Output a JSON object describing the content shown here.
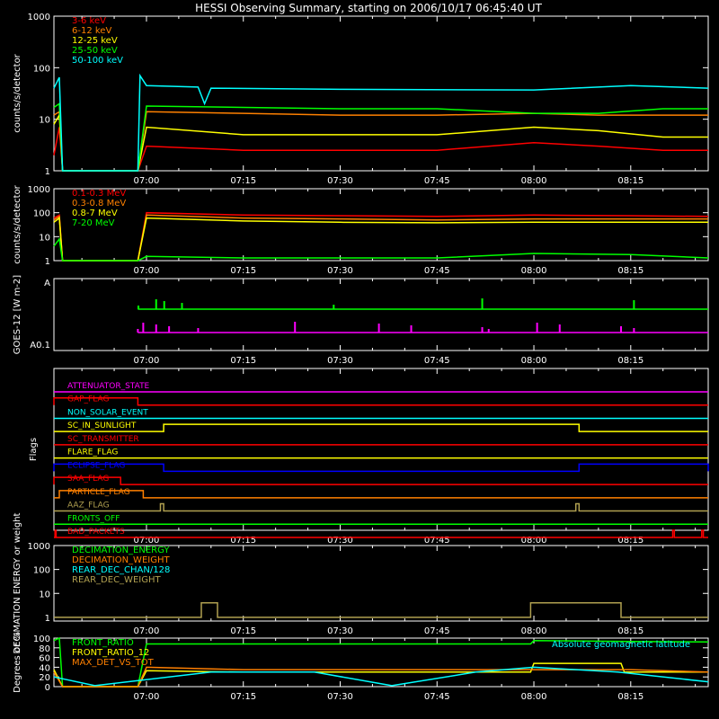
{
  "title": "HESSI Observing Summary, starting on 2006/10/17 06:45:40 UT",
  "colors": {
    "background": "#000000",
    "axis": "#ffffff",
    "red": "#ff0000",
    "orange": "#ff8000",
    "yellow": "#ffff00",
    "green": "#00ff00",
    "cyan": "#00ffff",
    "magenta": "#ff00ff",
    "blue": "#0000ff",
    "olive": "#b0a050"
  },
  "time_ticks": [
    "07:00",
    "07:15",
    "07:30",
    "07:45",
    "08:00",
    "08:15"
  ],
  "chart_data": [
    {
      "type": "line",
      "ylabel": "counts/s/detector",
      "yscale": "log",
      "ylim": [
        1,
        1000
      ],
      "yticks": [
        "1",
        "10",
        "100",
        "1000"
      ],
      "xlim": [
        "06:45:40",
        "08:27:00"
      ],
      "series": [
        {
          "name": "3-6 keV",
          "color": "red",
          "x": [
            "06:45:40",
            "06:46:30",
            "06:47:00",
            "06:58:40",
            "07:00",
            "07:15",
            "07:30",
            "07:45",
            "08:00",
            "08:10",
            "08:20",
            "08:27"
          ],
          "values": [
            2,
            7,
            1,
            1,
            3,
            2.5,
            2.5,
            2.5,
            3.5,
            3,
            2.5,
            2.5
          ]
        },
        {
          "name": "6-12 keV",
          "color": "orange",
          "x": [
            "06:45:40",
            "06:46:30",
            "06:47:00",
            "06:58:40",
            "07:00",
            "07:15",
            "07:30",
            "07:45",
            "08:00",
            "08:10",
            "08:20",
            "08:27"
          ],
          "values": [
            12,
            14,
            1,
            1,
            14,
            13,
            12,
            12,
            13,
            12,
            12,
            12
          ]
        },
        {
          "name": "12-25 keV",
          "color": "yellow",
          "x": [
            "06:45:40",
            "06:46:30",
            "06:47:00",
            "06:58:40",
            "07:00",
            "07:15",
            "07:30",
            "07:45",
            "08:00",
            "08:10",
            "08:20",
            "08:27"
          ],
          "values": [
            8,
            12,
            1,
            1,
            7,
            5,
            5,
            5,
            7,
            6,
            4.5,
            4.5
          ]
        },
        {
          "name": "25-50 keV",
          "color": "green",
          "x": [
            "06:45:40",
            "06:46:30",
            "06:47:00",
            "06:58:40",
            "07:00",
            "07:15",
            "07:30",
            "07:45",
            "08:00",
            "08:10",
            "08:20",
            "08:27"
          ],
          "values": [
            17,
            20,
            1,
            1,
            18,
            17,
            16,
            16,
            13,
            13,
            16,
            16
          ]
        },
        {
          "name": "50-100 keV",
          "color": "cyan",
          "x": [
            "06:45:40",
            "06:46:30",
            "06:47:00",
            "06:58:40",
            "06:59",
            "07:00",
            "07:08",
            "07:09",
            "07:10",
            "07:30",
            "08:00",
            "08:15",
            "08:27"
          ],
          "values": [
            40,
            65,
            1,
            1,
            70,
            45,
            42,
            20,
            40,
            38,
            37,
            45,
            40
          ]
        }
      ]
    },
    {
      "type": "line",
      "ylabel": "counts/s/detector",
      "yscale": "log",
      "ylim": [
        1,
        1000
      ],
      "yticks": [
        "1",
        "10",
        "100",
        "1000"
      ],
      "series": [
        {
          "name": "0.1-0.3 MeV",
          "color": "red",
          "x": [
            "06:45:40",
            "06:46:30",
            "06:47:00",
            "06:58:40",
            "07:00",
            "07:15",
            "07:30",
            "07:45",
            "08:00",
            "08:15",
            "08:27"
          ],
          "values": [
            60,
            80,
            1,
            1,
            100,
            80,
            75,
            70,
            80,
            75,
            70
          ]
        },
        {
          "name": "0.3-0.8 MeV",
          "color": "orange",
          "x": [
            "06:45:40",
            "06:46:30",
            "06:47:00",
            "06:58:40",
            "07:00",
            "07:15",
            "07:30",
            "07:45",
            "08:00",
            "08:15",
            "08:27"
          ],
          "values": [
            50,
            70,
            1,
            1,
            80,
            60,
            55,
            50,
            55,
            55,
            55
          ]
        },
        {
          "name": "0.8-7 MeV",
          "color": "yellow",
          "x": [
            "06:45:40",
            "06:46:30",
            "06:47:00",
            "06:58:40",
            "07:00",
            "07:15",
            "07:30",
            "07:45",
            "08:00",
            "08:15",
            "08:27"
          ],
          "values": [
            40,
            60,
            1,
            1,
            60,
            45,
            40,
            38,
            40,
            40,
            40
          ]
        },
        {
          "name": "7-20 MeV",
          "color": "green",
          "x": [
            "06:45:40",
            "06:46:30",
            "06:47:00",
            "06:58:40",
            "07:00",
            "07:15",
            "07:30",
            "07:45",
            "08:00",
            "08:15",
            "08:27"
          ],
          "values": [
            4,
            8,
            1,
            1,
            1.5,
            1.3,
            1.3,
            1.3,
            2,
            1.8,
            1.3
          ]
        }
      ]
    },
    {
      "type": "line",
      "ylabel": "GOES-12 [W m-2]",
      "yticks": [
        "A0.1",
        "A"
      ],
      "series": [
        {
          "color": "green",
          "spikes_at": [
            "06:58:45",
            "07:01:30",
            "07:02:45",
            "07:05:30",
            "07:29:00",
            "07:52:00",
            "08:15:30"
          ]
        },
        {
          "color": "magenta",
          "spikes_at": [
            "06:58:40",
            "06:59:30",
            "07:01:30",
            "07:03:30",
            "07:08:00",
            "07:23:00",
            "07:36:00",
            "07:41:00",
            "07:52:00",
            "07:53:00",
            "08:00:30",
            "08:04:00",
            "08:13:30",
            "08:15:30"
          ]
        }
      ]
    },
    {
      "type": "line",
      "ylabel": "Flags",
      "flags": [
        {
          "name": "ATTENUATOR_STATE",
          "color": "magenta",
          "edges": []
        },
        {
          "name": "GAP_FLAG",
          "color": "red",
          "edges": [
            [
              "06:45:40",
              "06:58:40",
              1
            ]
          ]
        },
        {
          "name": "NON_SOLAR_EVENT",
          "color": "cyan",
          "edges": []
        },
        {
          "name": "SC_IN_SUNLIGHT",
          "color": "yellow",
          "edges": [
            [
              "07:02:40",
              "08:07:00",
              1
            ]
          ]
        },
        {
          "name": "SC_TRANSMITTER",
          "color": "red",
          "edges": []
        },
        {
          "name": "FLARE_FLAG",
          "color": "yellow",
          "edges": []
        },
        {
          "name": "ECLIPSE_FLAG",
          "color": "blue",
          "edges": [
            [
              "06:45:40",
              "07:02:40",
              1
            ],
            [
              "08:07:00",
              "08:27:00",
              1
            ]
          ]
        },
        {
          "name": "SAA_FLAG",
          "color": "red",
          "edges": [
            [
              "06:45:40",
              "06:56:00",
              1
            ]
          ]
        },
        {
          "name": "PARTICLE_FLAG",
          "color": "orange",
          "edges": [
            [
              "06:46:30",
              "06:59:30",
              1
            ]
          ]
        },
        {
          "name": "AAZ_FLAG",
          "color": "olive",
          "edges": [
            [
              "07:02:10",
              "07:02:40",
              1
            ],
            [
              "08:06:30",
              "08:07:00",
              1
            ]
          ]
        },
        {
          "name": "FRONTS_OFF",
          "color": "green",
          "edges": []
        },
        {
          "name": "BAD_PACKETS",
          "color": "red",
          "edges": [
            [
              "06:45:50",
              "06:46:00",
              1
            ],
            [
              "08:21:30",
              "08:21:45",
              1
            ],
            [
              "08:26:00",
              "08:26:15",
              1
            ]
          ]
        }
      ]
    },
    {
      "type": "line",
      "ylabel": "DECIMATION ENERGY or weight",
      "yscale": "log",
      "ylim": [
        0.7,
        1000
      ],
      "yticks": [
        "1",
        "10",
        "100",
        "1000"
      ],
      "series": [
        {
          "name": "DECIMATION_ENERGY",
          "color": "green"
        },
        {
          "name": "DECIMATION_WEIGHT",
          "color": "orange"
        },
        {
          "name": "REAR_DEC_CHAN/128",
          "color": "cyan"
        },
        {
          "name": "REAR_DEC_WEIGHT",
          "color": "olive",
          "x": [
            "06:45:40",
            "07:08:30",
            "07:08:30",
            "07:11:00",
            "07:11:00",
            "07:59:30",
            "07:59:30",
            "08:13:30",
            "08:13:30",
            "08:27:00"
          ],
          "values": [
            1,
            1,
            4,
            4,
            1,
            1,
            4,
            4,
            1,
            1
          ]
        }
      ]
    },
    {
      "type": "line",
      "ylabel": "Degrees or %",
      "ylim": [
        0,
        100
      ],
      "yticks": [
        "0",
        "20",
        "40",
        "60",
        "80",
        "100"
      ],
      "annotation": "Absolute geomagnetic latitude",
      "series": [
        {
          "name": "FRONT_RATIO",
          "color": "green",
          "x": [
            "06:45:40",
            "06:46:30",
            "06:47:00",
            "06:58:40",
            "07:00",
            "07:15",
            "07:30",
            "07:45",
            "07:59:30",
            "08:00",
            "08:15",
            "08:27"
          ],
          "values": [
            95,
            100,
            0,
            0,
            88,
            88,
            88,
            88,
            88,
            95,
            93,
            92
          ]
        },
        {
          "name": "FRONT_RATIO_12",
          "color": "yellow",
          "x": [
            "06:45:40",
            "06:47:00",
            "06:58:40",
            "07:00",
            "07:15",
            "07:30",
            "07:45",
            "07:59:30",
            "08:00",
            "08:13:30",
            "08:14",
            "08:27"
          ],
          "values": [
            35,
            0,
            0,
            33,
            30,
            30,
            30,
            30,
            48,
            48,
            30,
            30
          ]
        },
        {
          "name": "MAX_DET_VS_TOT",
          "color": "orange",
          "x": [
            "06:45:40",
            "06:47:00",
            "06:58:40",
            "07:00",
            "07:15",
            "07:30",
            "07:45",
            "08:00",
            "08:15",
            "08:27"
          ],
          "values": [
            30,
            0,
            0,
            40,
            35,
            35,
            35,
            35,
            35,
            30
          ]
        },
        {
          "color": "cyan",
          "x": [
            "06:45:40",
            "06:52:00",
            "07:10:00",
            "07:26:00",
            "07:38:00",
            "07:51:00",
            "08:00:00",
            "08:13:00",
            "08:27:00"
          ],
          "values": [
            20,
            2,
            30,
            30,
            2,
            30,
            40,
            30,
            10
          ]
        }
      ]
    }
  ]
}
